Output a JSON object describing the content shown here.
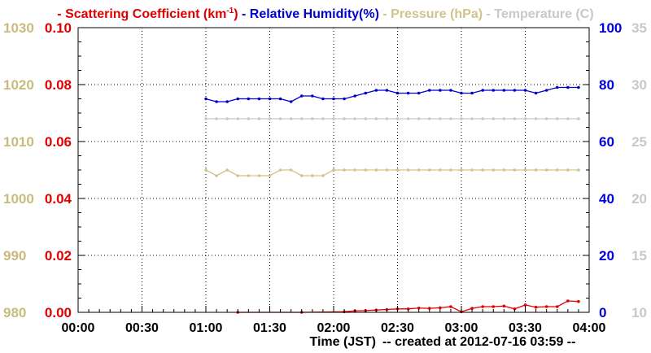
{
  "chart_data": {
    "type": "line",
    "legend": [
      {
        "label": "Scattering Coefficient (km",
        "sup": "-1",
        "suffix": ")",
        "color": "#e00000"
      },
      {
        "label": "Relative Humidity(%)",
        "color": "#0000cc"
      },
      {
        "label": "Pressure (hPa)",
        "color": "#d2c38a"
      },
      {
        "label": "Temperature (C)",
        "color": "#c8c8c8"
      }
    ],
    "xlabel": "Time (JST)",
    "created_note": "-- created at 2012-07-16 03:59 --",
    "x_ticks": [
      "00:00",
      "00:30",
      "01:00",
      "01:30",
      "02:00",
      "02:30",
      "03:00",
      "03:30",
      "04:00"
    ],
    "xlim_minutes": [
      0,
      240
    ],
    "axes": {
      "scattering": {
        "ticks": [
          "0.00",
          "0.02",
          "0.04",
          "0.06",
          "0.08",
          "0.10"
        ],
        "range": [
          0,
          0.1
        ],
        "color": "#e00000"
      },
      "pressure": {
        "ticks": [
          "980",
          "990",
          "1000",
          "1010",
          "1020",
          "1030"
        ],
        "range": [
          980,
          1030
        ],
        "color": "#c9bb7e"
      },
      "humidity": {
        "ticks": [
          "0",
          "20",
          "40",
          "60",
          "80",
          "100"
        ],
        "range": [
          0,
          100
        ],
        "color": "#0000dd"
      },
      "temperature": {
        "ticks": [
          "10",
          "15",
          "20",
          "25",
          "30",
          "35"
        ],
        "range": [
          10,
          35
        ],
        "color": "#c8c8c8"
      }
    },
    "grid": true,
    "series": [
      {
        "name": "Scattering Coefficient",
        "axis": "scattering",
        "color": "#e00000",
        "x": [
          "01:15",
          "01:45",
          "02:05",
          "02:10",
          "02:15",
          "02:20",
          "02:25",
          "02:30",
          "02:35",
          "02:40",
          "02:45",
          "02:50",
          "02:55",
          "03:00",
          "03:05",
          "03:10",
          "03:15",
          "03:20",
          "03:25",
          "03:30",
          "03:35",
          "03:40",
          "03:45",
          "03:50",
          "03:55"
        ],
        "y": [
          0.0,
          0.0,
          0.0002,
          0.0005,
          0.0006,
          0.0008,
          0.001,
          0.0012,
          0.0012,
          0.0015,
          0.0014,
          0.0016,
          0.002,
          0.0002,
          0.0014,
          0.002,
          0.002,
          0.0022,
          0.0012,
          0.0026,
          0.0018,
          0.002,
          0.002,
          0.004,
          0.0038
        ]
      },
      {
        "name": "Relative Humidity(%)",
        "axis": "humidity",
        "color": "#0000cc",
        "x": [
          "01:00",
          "01:05",
          "01:10",
          "01:15",
          "01:20",
          "01:25",
          "01:30",
          "01:35",
          "01:40",
          "01:45",
          "01:50",
          "01:55",
          "02:00",
          "02:05",
          "02:10",
          "02:15",
          "02:20",
          "02:25",
          "02:30",
          "02:35",
          "02:40",
          "02:45",
          "02:50",
          "02:55",
          "03:00",
          "03:05",
          "03:10",
          "03:15",
          "03:20",
          "03:25",
          "03:30",
          "03:35",
          "03:40",
          "03:45",
          "03:50",
          "03:55"
        ],
        "y": [
          75,
          74,
          74,
          75,
          75,
          75,
          75,
          75,
          74,
          76,
          76,
          75,
          75,
          75,
          76,
          77,
          78,
          78,
          77,
          77,
          77,
          78,
          78,
          78,
          77,
          77,
          78,
          78,
          78,
          78,
          78,
          77,
          78,
          79,
          79,
          79
        ]
      },
      {
        "name": "Pressure (hPa)",
        "axis": "pressure",
        "color": "#d2c38a",
        "x": [
          "01:00",
          "01:05",
          "01:10",
          "01:15",
          "01:20",
          "01:25",
          "01:30",
          "01:35",
          "01:40",
          "01:45",
          "01:50",
          "01:55",
          "02:00",
          "02:05",
          "02:10",
          "02:15",
          "02:20",
          "02:25",
          "02:30",
          "02:35",
          "02:40",
          "02:45",
          "02:50",
          "02:55",
          "03:00",
          "03:05",
          "03:10",
          "03:15",
          "03:20",
          "03:25",
          "03:30",
          "03:35",
          "03:40",
          "03:45",
          "03:50",
          "03:55"
        ],
        "y": [
          1005,
          1004,
          1005,
          1004,
          1004,
          1004,
          1004,
          1005,
          1005,
          1004,
          1004,
          1004,
          1005,
          1005,
          1005,
          1005,
          1005,
          1005,
          1005,
          1005,
          1005,
          1005,
          1005,
          1005,
          1005,
          1005,
          1005,
          1005,
          1005,
          1005,
          1005,
          1005,
          1005,
          1005,
          1005,
          1005
        ]
      },
      {
        "name": "Temperature (C)",
        "axis": "temperature",
        "color": "#c8c8c8",
        "x": [
          "01:00",
          "01:05",
          "01:10",
          "01:15",
          "01:20",
          "01:25",
          "01:30",
          "01:35",
          "01:40",
          "01:45",
          "01:50",
          "01:55",
          "02:00",
          "02:05",
          "02:10",
          "02:15",
          "02:20",
          "02:25",
          "02:30",
          "02:35",
          "02:40",
          "02:45",
          "02:50",
          "02:55",
          "03:00",
          "03:05",
          "03:10",
          "03:15",
          "03:20",
          "03:25",
          "03:30",
          "03:35",
          "03:40",
          "03:45",
          "03:50",
          "03:55"
        ],
        "y": [
          27,
          27,
          27,
          27,
          27,
          27,
          27,
          27,
          27,
          27,
          27,
          27,
          27,
          27,
          27,
          27,
          27,
          27,
          27,
          27,
          27,
          27,
          27,
          27,
          27,
          27,
          27,
          27,
          27,
          27,
          27,
          27,
          27,
          27,
          27,
          27
        ]
      }
    ]
  }
}
